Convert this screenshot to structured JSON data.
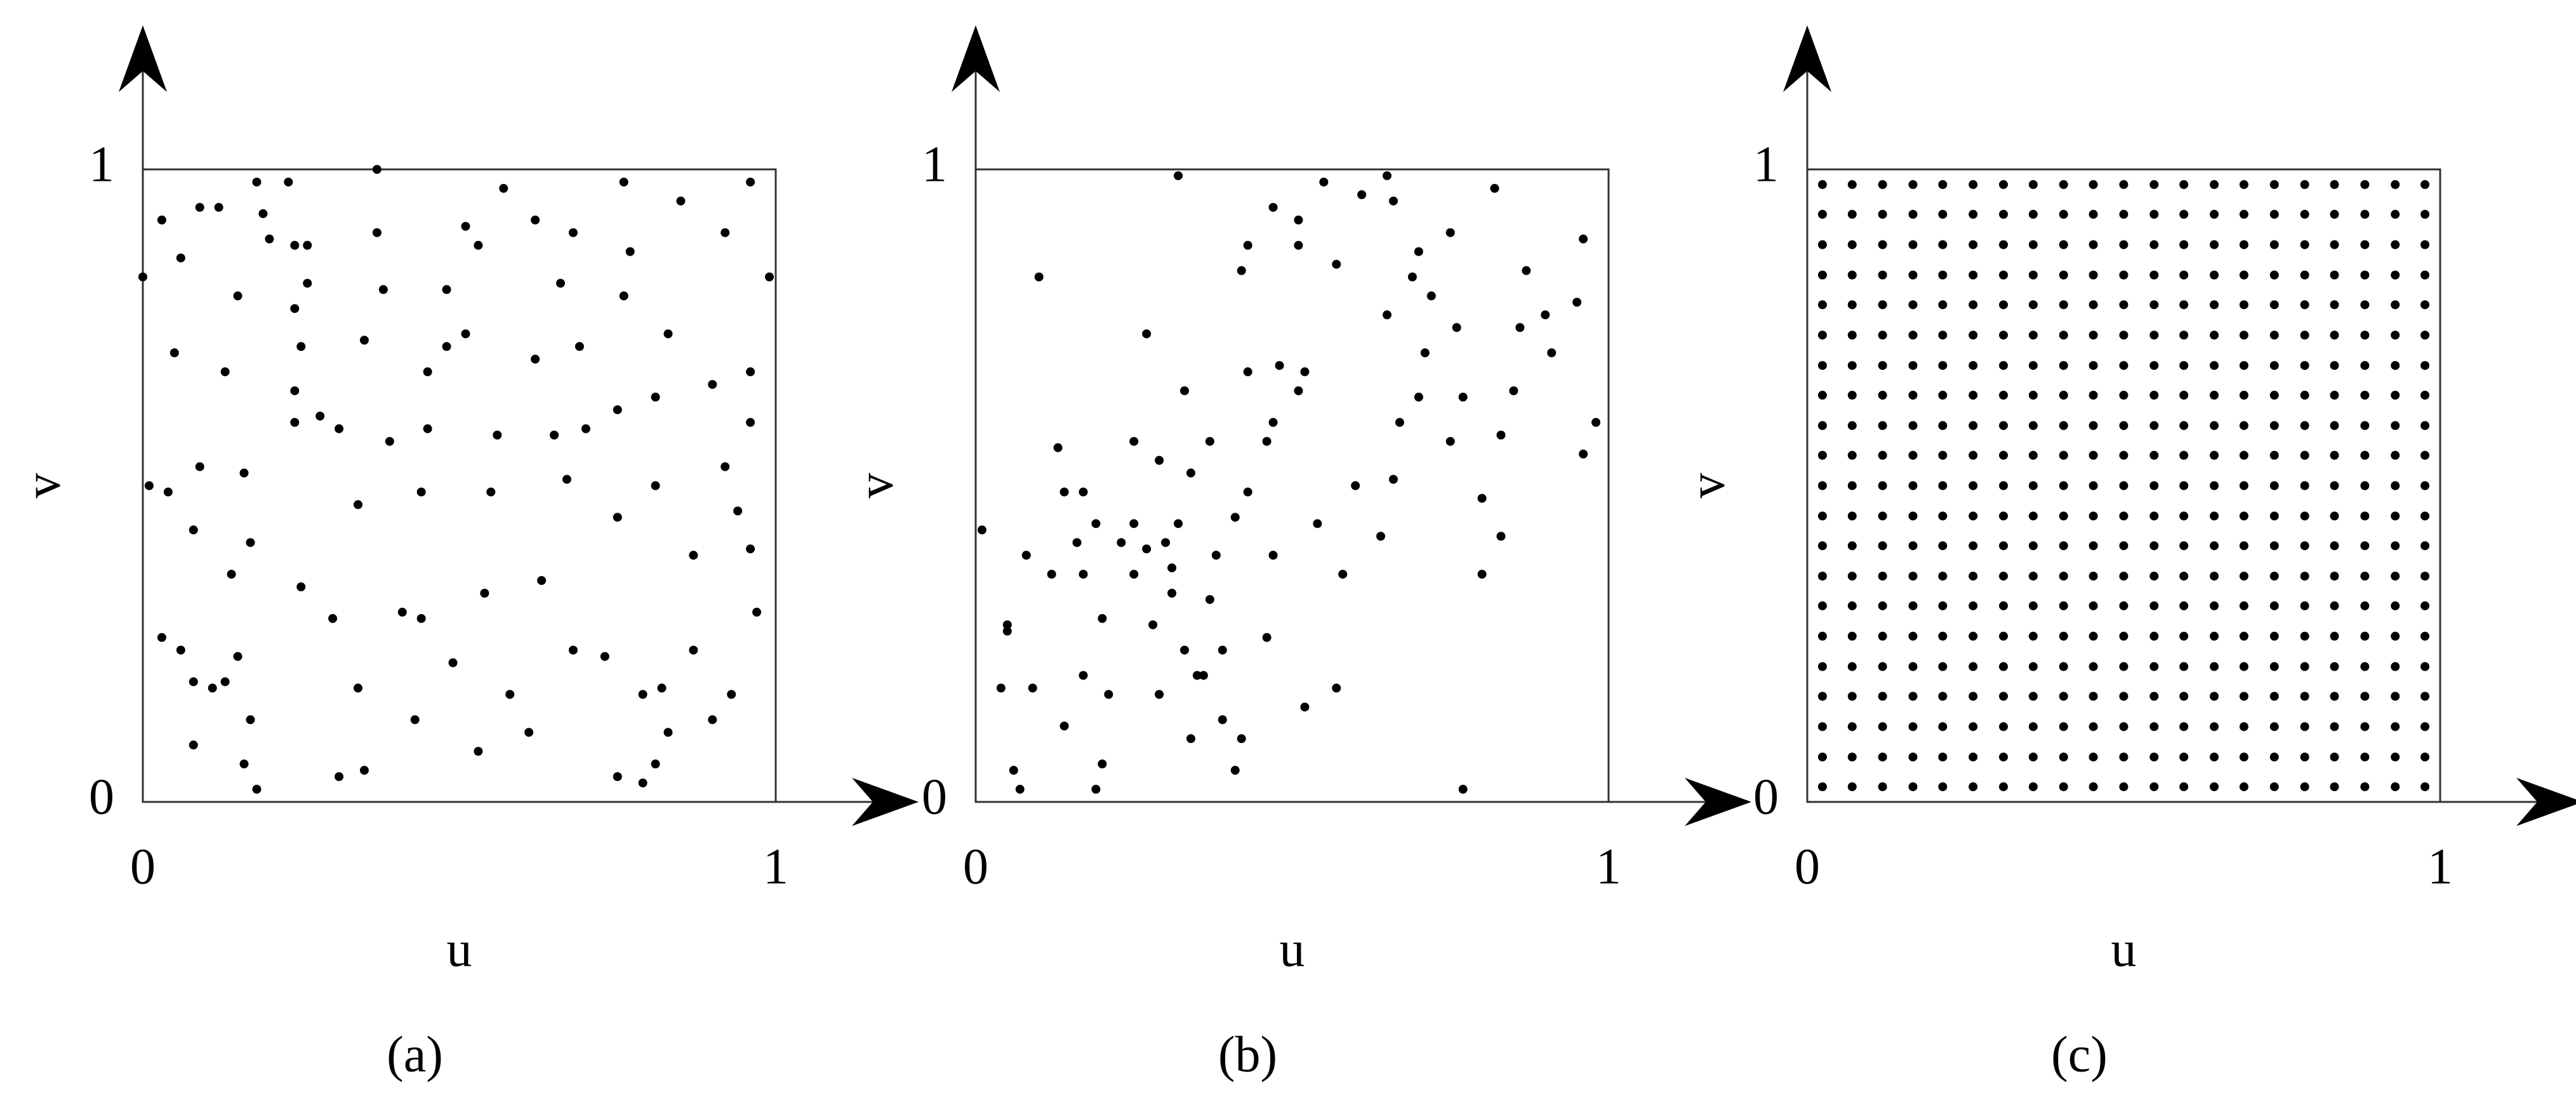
{
  "chart_data": [
    {
      "type": "scatter",
      "caption": "(a)",
      "x_label": "u",
      "y_label": "v",
      "color": "#000000",
      "xlim": [
        0,
        1
      ],
      "ylim": [
        0,
        1
      ],
      "xticks": [
        0,
        1
      ],
      "yticks": [
        0,
        1
      ],
      "x": [
        0,
        0.03,
        0.06,
        0.09,
        0.12,
        0.15,
        0.18,
        0.19,
        0.23,
        0.24,
        0.26,
        0.2,
        0.24,
        0.26,
        0.25,
        0.24,
        0.28,
        0.37,
        0.37,
        0.38,
        0.48,
        0.51,
        0.53,
        0.57,
        0.62,
        0.68,
        0.66,
        0.76,
        0.77,
        0.76,
        0.85,
        0.92,
        0.96,
        0.99,
        0.05,
        0.13,
        0.35,
        0.45,
        0.48,
        0.51,
        0.62,
        0.69,
        0.83,
        0.9,
        0.96,
        0.96,
        0.81,
        0.75,
        0.7,
        0.65,
        0.56,
        0.45,
        0.39,
        0.31,
        0.24,
        0.16,
        0.09,
        0.01,
        0.04,
        0.08,
        0.17,
        0.34,
        0.44,
        0.55,
        0.67,
        0.81,
        0.92,
        0.94,
        0.96,
        0.87,
        0.75,
        0.63,
        0.54,
        0.44,
        0.41,
        0.3,
        0.25,
        0.14,
        0.03,
        0.06,
        0.08,
        0.11,
        0.13,
        0.15,
        0.17,
        0.08,
        0.16,
        0.18,
        0.31,
        0.35,
        0.34,
        0.43,
        0.49,
        0.53,
        0.58,
        0.61,
        0.68,
        0.73,
        0.79,
        0.82,
        0.83,
        0.75,
        0.79,
        0.81,
        0.9,
        0.93,
        0.97,
        0.87
      ],
      "y": [
        0.83,
        0.92,
        0.86,
        0.94,
        0.94,
        0.8,
        0.98,
        0.93,
        0.98,
        0.88,
        0.88,
        0.89,
        0.78,
        0.82,
        0.72,
        0.65,
        0.61,
        0.9,
        1.0,
        0.81,
        0.81,
        0.91,
        0.88,
        0.97,
        0.92,
        0.9,
        0.82,
        0.98,
        0.87,
        0.8,
        0.95,
        0.9,
        0.98,
        0.83,
        0.71,
        0.68,
        0.73,
        0.68,
        0.72,
        0.74,
        0.7,
        0.72,
        0.74,
        0.66,
        0.68,
        0.6,
        0.64,
        0.62,
        0.59,
        0.58,
        0.58,
        0.59,
        0.57,
        0.59,
        0.6,
        0.52,
        0.53,
        0.5,
        0.49,
        0.43,
        0.41,
        0.47,
        0.49,
        0.49,
        0.51,
        0.5,
        0.53,
        0.46,
        0.4,
        0.39,
        0.45,
        0.35,
        0.33,
        0.29,
        0.3,
        0.29,
        0.34,
        0.36,
        0.26,
        0.24,
        0.19,
        0.18,
        0.19,
        0.23,
        0.13,
        0.09,
        0.06,
        0.02,
        0.04,
        0.05,
        0.18,
        0.13,
        0.22,
        0.08,
        0.17,
        0.11,
        0.24,
        0.23,
        0.17,
        0.18,
        0.11,
        0.04,
        0.03,
        0.06,
        0.13,
        0.17,
        0.3,
        0.24
      ]
    },
    {
      "type": "scatter",
      "caption": "(b)",
      "x_label": "u",
      "y_label": "v",
      "color": "#000000",
      "xlim": [
        0,
        1
      ],
      "ylim": [
        0,
        1
      ],
      "xticks": [
        0,
        1
      ],
      "yticks": [
        0,
        1
      ],
      "x": [
        0.01,
        0.05,
        0.06,
        0.07,
        0.1,
        0.13,
        0.14,
        0.16,
        0.17,
        0.19,
        0.2,
        0.19,
        0.2,
        0.23,
        0.25,
        0.25,
        0.27,
        0.28,
        0.29,
        0.3,
        0.31,
        0.31,
        0.32,
        0.33,
        0.34,
        0.35,
        0.37,
        0.38,
        0.39,
        0.41,
        0.39,
        0.27,
        0.33,
        0.32,
        0.37,
        0.46,
        0.47,
        0.47,
        0.51,
        0.54,
        0.52,
        0.57,
        0.58,
        0.6,
        0.64,
        0.66,
        0.67,
        0.7,
        0.71,
        0.75,
        0.77,
        0.77,
        0.8,
        0.8,
        0.83,
        0.83,
        0.85,
        0.86,
        0.87,
        0.9,
        0.91,
        0.95,
        0.96,
        0.96,
        0.98,
        0.82,
        0.75,
        0.7,
        0.66,
        0.65,
        0.61,
        0.55,
        0.51,
        0.47,
        0.43,
        0.42,
        0.57,
        0.65,
        0.69,
        0.72,
        0.76,
        0.43,
        0.46,
        0.48,
        0.52,
        0.43,
        0.41,
        0.29,
        0.25,
        0.17,
        0.12,
        0.08,
        0.05,
        0.09,
        0.14,
        0.17,
        0.21,
        0.04,
        0.36,
        0.42,
        0.34,
        0.51
      ],
      "y": [
        0.43,
        0.27,
        0.05,
        0.02,
        0.83,
        0.56,
        0.49,
        0.41,
        0.36,
        0.44,
        0.29,
        0.02,
        0.06,
        0.41,
        0.36,
        0.44,
        0.4,
        0.28,
        0.17,
        0.41,
        0.37,
        0.33,
        0.44,
        0.24,
        0.52,
        0.2,
        0.32,
        0.39,
        0.13,
        0.05,
        0.24,
        0.74,
        0.65,
        0.99,
        0.57,
        0.26,
        0.39,
        0.6,
        0.65,
        0.44,
        0.15,
        0.18,
        0.36,
        0.5,
        0.42,
        0.51,
        0.6,
        0.64,
        0.71,
        0.57,
        0.02,
        0.64,
        0.48,
        0.36,
        0.42,
        0.58,
        0.65,
        0.75,
        0.84,
        0.77,
        0.71,
        0.79,
        0.55,
        0.89,
        0.6,
        0.97,
        0.9,
        0.87,
        0.95,
        0.99,
        0.96,
        0.98,
        0.92,
        0.94,
        0.88,
        0.84,
        0.85,
        0.77,
        0.83,
        0.8,
        0.75,
        0.68,
        0.57,
        0.69,
        0.68,
        0.49,
        0.45,
        0.54,
        0.57,
        0.49,
        0.36,
        0.39,
        0.28,
        0.18,
        0.12,
        0.2,
        0.17,
        0.18,
        0.2,
        0.1,
        0.1,
        0.88
      ]
    },
    {
      "type": "grid",
      "caption": "(c)",
      "x_label": "u",
      "y_label": "v",
      "color": "#000000",
      "xlim": [
        0,
        1
      ],
      "ylim": [
        0,
        1
      ],
      "xticks": [
        0,
        1
      ],
      "yticks": [
        0,
        1
      ],
      "x": [
        0.024,
        0.071,
        0.119,
        0.167,
        0.214,
        0.262,
        0.31,
        0.357,
        0.405,
        0.452,
        0.5,
        0.548,
        0.595,
        0.643,
        0.69,
        0.738,
        0.786,
        0.833,
        0.881,
        0.929,
        0.976
      ],
      "y": [
        0.024,
        0.071,
        0.119,
        0.167,
        0.214,
        0.262,
        0.31,
        0.357,
        0.405,
        0.452,
        0.5,
        0.548,
        0.595,
        0.643,
        0.69,
        0.738,
        0.786,
        0.833,
        0.881,
        0.929,
        0.976
      ]
    }
  ]
}
